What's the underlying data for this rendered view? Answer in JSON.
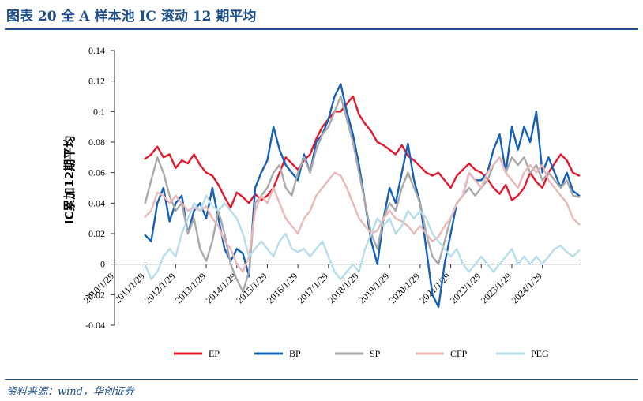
{
  "header": {
    "title": "图表 20   全 A 样本池 IC 滚动 12 期平均"
  },
  "footer": {
    "source": "资料来源：wind，华创证券"
  },
  "chart_data": {
    "type": "line",
    "title": "全 A 样本池 IC 滚动 12 期平均",
    "ylabel": "IC累加12期平均",
    "xlabel": "",
    "ylim": [
      -0.04,
      0.14
    ],
    "xlim": [
      2010.0,
      2025.25
    ],
    "yticks": [
      -0.04,
      -0.02,
      0,
      0.02,
      0.04,
      0.06,
      0.08,
      0.1,
      0.12,
      0.14
    ],
    "yticklabels": [
      "-0.04",
      "-0.02",
      "0",
      "0.02",
      "0.04",
      "0.06",
      "0.08",
      "0.1",
      "0.12",
      "0.14"
    ],
    "xticks": [
      2010.0,
      2011.0,
      2012.0,
      2013.0,
      2014.0,
      2015.0,
      2016.0,
      2017.0,
      2018.0,
      2019.0,
      2020.0,
      2021.0,
      2022.0,
      2023.0,
      2024.0
    ],
    "xticklabels": [
      "2010/1/29",
      "2011/1/29",
      "2012/1/29",
      "2013/1/29",
      "2014/1/29",
      "2015/1/29",
      "2016/1/29",
      "2017/1/29",
      "2018/1/29",
      "2019/1/29",
      "2020/1/29",
      "2021/1/29",
      "2022/1/29",
      "2023/1/29",
      "2024/1/29"
    ],
    "legend_position": "bottom",
    "series": [
      {
        "name": "EP",
        "color": "#e3182d",
        "width": 2.4,
        "x": [
          2011.0,
          2011.2,
          2011.4,
          2011.6,
          2011.8,
          2012.0,
          2012.2,
          2012.4,
          2012.6,
          2012.8,
          2013.0,
          2013.2,
          2013.4,
          2013.6,
          2013.8,
          2014.0,
          2014.2,
          2014.4,
          2014.6,
          2014.8,
          2015.0,
          2015.2,
          2015.4,
          2015.6,
          2015.8,
          2016.0,
          2016.2,
          2016.4,
          2016.6,
          2016.8,
          2017.0,
          2017.2,
          2017.4,
          2017.6,
          2017.8,
          2018.0,
          2018.2,
          2018.4,
          2018.6,
          2018.8,
          2019.0,
          2019.2,
          2019.4,
          2019.6,
          2019.8,
          2020.0,
          2020.2,
          2020.4,
          2020.6,
          2020.8,
          2021.0,
          2021.2,
          2021.4,
          2021.6,
          2021.8,
          2022.0,
          2022.2,
          2022.4,
          2022.6,
          2022.8,
          2023.0,
          2023.2,
          2023.4,
          2023.6,
          2023.8,
          2024.0,
          2024.2,
          2024.4,
          2024.6,
          2024.8,
          2025.0,
          2025.2
        ],
        "y": [
          0.069,
          0.072,
          0.077,
          0.07,
          0.072,
          0.063,
          0.068,
          0.066,
          0.072,
          0.065,
          0.06,
          0.058,
          0.052,
          0.044,
          0.037,
          0.047,
          0.044,
          0.04,
          0.046,
          0.042,
          0.045,
          0.05,
          0.06,
          0.07,
          0.066,
          0.062,
          0.068,
          0.072,
          0.082,
          0.09,
          0.095,
          0.1,
          0.1,
          0.105,
          0.11,
          0.098,
          0.092,
          0.087,
          0.08,
          0.078,
          0.075,
          0.072,
          0.078,
          0.071,
          0.068,
          0.064,
          0.06,
          0.058,
          0.06,
          0.055,
          0.05,
          0.058,
          0.062,
          0.066,
          0.062,
          0.06,
          0.056,
          0.05,
          0.046,
          0.052,
          0.042,
          0.045,
          0.05,
          0.06,
          0.054,
          0.05,
          0.06,
          0.066,
          0.072,
          0.068,
          0.06,
          0.058
        ]
      },
      {
        "name": "BP",
        "color": "#1560b8",
        "width": 2.4,
        "x": [
          2011.0,
          2011.2,
          2011.4,
          2011.6,
          2011.8,
          2012.0,
          2012.2,
          2012.4,
          2012.6,
          2012.8,
          2013.0,
          2013.2,
          2013.4,
          2013.6,
          2013.8,
          2014.0,
          2014.2,
          2014.4,
          2014.6,
          2014.8,
          2015.0,
          2015.2,
          2015.4,
          2015.6,
          2015.8,
          2016.0,
          2016.2,
          2016.4,
          2016.6,
          2016.8,
          2017.0,
          2017.2,
          2017.4,
          2017.6,
          2017.8,
          2018.0,
          2018.2,
          2018.4,
          2018.6,
          2018.8,
          2019.0,
          2019.2,
          2019.4,
          2019.6,
          2019.8,
          2020.0,
          2020.2,
          2020.4,
          2020.6,
          2020.8,
          2021.0,
          2021.2,
          2021.4,
          2021.6,
          2021.8,
          2022.0,
          2022.2,
          2022.4,
          2022.6,
          2022.8,
          2023.0,
          2023.2,
          2023.4,
          2023.6,
          2023.8,
          2024.0,
          2024.2,
          2024.4,
          2024.6,
          2024.8,
          2025.0,
          2025.2
        ],
        "y": [
          0.019,
          0.015,
          0.04,
          0.05,
          0.028,
          0.04,
          0.045,
          0.02,
          0.035,
          0.04,
          0.03,
          0.05,
          0.03,
          0.01,
          0.002,
          0.01,
          0.007,
          -0.008,
          0.05,
          0.06,
          0.068,
          0.09,
          0.075,
          0.065,
          0.06,
          0.055,
          0.072,
          0.06,
          0.08,
          0.085,
          0.095,
          0.11,
          0.118,
          0.1,
          0.085,
          0.065,
          0.04,
          0.015,
          0.0,
          0.03,
          0.05,
          0.04,
          0.06,
          0.079,
          0.055,
          0.04,
          0.01,
          -0.02,
          -0.028,
          0.0,
          0.02,
          0.04,
          0.045,
          0.06,
          0.055,
          0.055,
          0.06,
          0.075,
          0.085,
          0.06,
          0.09,
          0.075,
          0.09,
          0.08,
          0.1,
          0.06,
          0.07,
          0.06,
          0.05,
          0.06,
          0.048,
          0.045
        ]
      },
      {
        "name": "SP",
        "color": "#a9a9a9",
        "width": 2.4,
        "x": [
          2011.0,
          2011.2,
          2011.4,
          2011.6,
          2011.8,
          2012.0,
          2012.2,
          2012.4,
          2012.6,
          2012.8,
          2013.0,
          2013.2,
          2013.4,
          2013.6,
          2013.8,
          2014.0,
          2014.2,
          2014.4,
          2014.6,
          2014.8,
          2015.0,
          2015.2,
          2015.4,
          2015.6,
          2015.8,
          2016.0,
          2016.2,
          2016.4,
          2016.6,
          2016.8,
          2017.0,
          2017.2,
          2017.4,
          2017.6,
          2017.8,
          2018.0,
          2018.2,
          2018.4,
          2018.6,
          2018.8,
          2019.0,
          2019.2,
          2019.4,
          2019.6,
          2019.8,
          2020.0,
          2020.2,
          2020.4,
          2020.6,
          2020.8,
          2021.0,
          2021.2,
          2021.4,
          2021.6,
          2021.8,
          2022.0,
          2022.2,
          2022.4,
          2022.6,
          2022.8,
          2023.0,
          2023.2,
          2023.4,
          2023.6,
          2023.8,
          2024.0,
          2024.2,
          2024.4,
          2024.6,
          2024.8,
          2025.0,
          2025.2
        ],
        "y": [
          0.04,
          0.055,
          0.07,
          0.06,
          0.045,
          0.035,
          0.04,
          0.02,
          0.03,
          0.01,
          0.002,
          0.015,
          0.035,
          0.02,
          0.0,
          -0.01,
          -0.018,
          -0.005,
          0.04,
          0.045,
          0.05,
          0.06,
          0.065,
          0.05,
          0.045,
          0.06,
          0.07,
          0.06,
          0.075,
          0.085,
          0.09,
          0.1,
          0.11,
          0.095,
          0.08,
          0.06,
          0.04,
          0.02,
          0.01,
          0.03,
          0.04,
          0.035,
          0.05,
          0.06,
          0.05,
          0.04,
          0.02,
          0.005,
          0.0,
          0.015,
          0.03,
          0.04,
          0.045,
          0.05,
          0.045,
          0.05,
          0.055,
          0.065,
          0.07,
          0.06,
          0.07,
          0.065,
          0.07,
          0.06,
          0.065,
          0.055,
          0.06,
          0.055,
          0.05,
          0.055,
          0.045,
          0.044
        ]
      },
      {
        "name": "CFP",
        "color": "#eab8b8",
        "width": 2.4,
        "x": [
          2011.0,
          2011.2,
          2011.4,
          2011.6,
          2011.8,
          2012.0,
          2012.2,
          2012.4,
          2012.6,
          2012.8,
          2013.0,
          2013.2,
          2013.4,
          2013.6,
          2013.8,
          2014.0,
          2014.2,
          2014.4,
          2014.6,
          2014.8,
          2015.0,
          2015.2,
          2015.4,
          2015.6,
          2015.8,
          2016.0,
          2016.2,
          2016.4,
          2016.6,
          2016.8,
          2017.0,
          2017.2,
          2017.4,
          2017.6,
          2017.8,
          2018.0,
          2018.2,
          2018.4,
          2018.6,
          2018.8,
          2019.0,
          2019.2,
          2019.4,
          2019.6,
          2019.8,
          2020.0,
          2020.2,
          2020.4,
          2020.6,
          2020.8,
          2021.0,
          2021.2,
          2021.4,
          2021.6,
          2021.8,
          2022.0,
          2022.2,
          2022.4,
          2022.6,
          2022.8,
          2023.0,
          2023.2,
          2023.4,
          2023.6,
          2023.8,
          2024.0,
          2024.2,
          2024.4,
          2024.6,
          2024.8,
          2025.0,
          2025.2
        ],
        "y": [
          0.031,
          0.035,
          0.047,
          0.045,
          0.04,
          0.045,
          0.04,
          0.035,
          0.037,
          0.035,
          0.038,
          0.03,
          0.025,
          0.015,
          0.01,
          0.0,
          -0.005,
          0.005,
          0.035,
          0.045,
          0.04,
          0.05,
          0.04,
          0.03,
          0.025,
          0.02,
          0.03,
          0.035,
          0.045,
          0.05,
          0.055,
          0.06,
          0.058,
          0.05,
          0.04,
          0.03,
          0.025,
          0.02,
          0.022,
          0.03,
          0.035,
          0.03,
          0.028,
          0.025,
          0.02,
          0.025,
          0.02,
          0.015,
          0.018,
          0.025,
          0.03,
          0.04,
          0.045,
          0.06,
          0.055,
          0.05,
          0.06,
          0.065,
          0.07,
          0.06,
          0.055,
          0.05,
          0.06,
          0.065,
          0.06,
          0.065,
          0.055,
          0.05,
          0.045,
          0.04,
          0.03,
          0.026
        ]
      },
      {
        "name": "PEG",
        "color": "#b7dde9",
        "width": 2.4,
        "x": [
          2011.0,
          2011.2,
          2011.4,
          2011.6,
          2011.8,
          2012.0,
          2012.2,
          2012.4,
          2012.6,
          2012.8,
          2013.0,
          2013.2,
          2013.4,
          2013.6,
          2013.8,
          2014.0,
          2014.2,
          2014.4,
          2014.6,
          2014.8,
          2015.0,
          2015.2,
          2015.4,
          2015.6,
          2015.8,
          2016.0,
          2016.2,
          2016.4,
          2016.6,
          2016.8,
          2017.0,
          2017.2,
          2017.4,
          2017.6,
          2017.8,
          2018.0,
          2018.2,
          2018.4,
          2018.6,
          2018.8,
          2019.0,
          2019.2,
          2019.4,
          2019.6,
          2019.8,
          2020.0,
          2020.2,
          2020.4,
          2020.6,
          2020.8,
          2021.0,
          2021.2,
          2021.4,
          2021.6,
          2021.8,
          2022.0,
          2022.2,
          2022.4,
          2022.6,
          2022.8,
          2023.0,
          2023.2,
          2023.4,
          2023.6,
          2023.8,
          2024.0,
          2024.2,
          2024.4,
          2024.6,
          2024.8,
          2025.0,
          2025.2
        ],
        "y": [
          0.0,
          -0.01,
          -0.005,
          0.005,
          0.01,
          0.005,
          0.02,
          0.03,
          0.04,
          0.035,
          0.045,
          0.038,
          0.035,
          0.04,
          0.035,
          0.03,
          0.02,
          0.005,
          0.01,
          0.015,
          0.01,
          0.005,
          0.015,
          0.02,
          0.01,
          0.008,
          0.01,
          0.005,
          0.01,
          0.015,
          0.005,
          -0.005,
          -0.01,
          -0.005,
          0.0,
          -0.005,
          0.01,
          0.02,
          0.03,
          0.025,
          0.03,
          0.02,
          0.025,
          0.035,
          0.03,
          0.035,
          0.03,
          0.02,
          0.015,
          0.01,
          0.005,
          0.01,
          0.0,
          -0.005,
          0.0,
          0.005,
          0.0,
          -0.005,
          0.0,
          0.005,
          0.01,
          0.0,
          0.005,
          0.0,
          0.005,
          0.0,
          0.005,
          0.01,
          0.012,
          0.008,
          0.005,
          0.009
        ]
      }
    ]
  }
}
